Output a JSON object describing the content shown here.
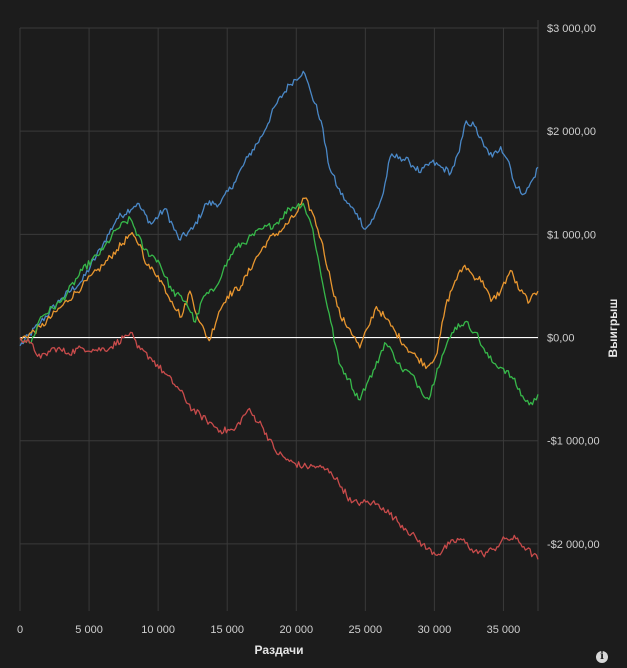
{
  "chart_data": {
    "type": "line",
    "xlabel": "Раздачи",
    "ylabel": "Выигрыш",
    "xlim": [
      0,
      37500
    ],
    "ylim": [
      -2650,
      3000
    ],
    "x_ticks": [
      0,
      5000,
      10000,
      15000,
      20000,
      25000,
      30000,
      35000
    ],
    "x_tick_labels": [
      "0",
      "5 000",
      "10 000",
      "15 000",
      "20 000",
      "25 000",
      "30 000",
      "35 000"
    ],
    "y_ticks": [
      3000,
      2000,
      1000,
      0,
      -1000,
      -2000
    ],
    "y_tick_labels": [
      "$3 000,00",
      "$2 000,00",
      "$1 000,00",
      "$0,00",
      "-$1 000,00",
      "-$2 000,00"
    ],
    "grid": true,
    "series": [
      {
        "color": "#4a88c7",
        "points": [
          [
            0,
            -80
          ],
          [
            1500,
            150
          ],
          [
            3000,
            380
          ],
          [
            4500,
            550
          ],
          [
            6000,
            900
          ],
          [
            7000,
            1150
          ],
          [
            8500,
            1300
          ],
          [
            9500,
            1100
          ],
          [
            10500,
            1250
          ],
          [
            11500,
            950
          ],
          [
            12500,
            1050
          ],
          [
            13500,
            1300
          ],
          [
            14500,
            1300
          ],
          [
            15500,
            1500
          ],
          [
            16500,
            1750
          ],
          [
            17500,
            1950
          ],
          [
            18500,
            2250
          ],
          [
            19500,
            2450
          ],
          [
            20500,
            2580
          ],
          [
            21000,
            2400
          ],
          [
            21800,
            2100
          ],
          [
            22300,
            1700
          ],
          [
            23000,
            1450
          ],
          [
            23700,
            1300
          ],
          [
            24400,
            1200
          ],
          [
            25000,
            1050
          ],
          [
            25600,
            1150
          ],
          [
            26300,
            1400
          ],
          [
            26800,
            1750
          ],
          [
            27500,
            1750
          ],
          [
            28200,
            1700
          ],
          [
            29000,
            1600
          ],
          [
            29800,
            1700
          ],
          [
            30500,
            1650
          ],
          [
            31200,
            1600
          ],
          [
            31800,
            1800
          ],
          [
            32300,
            2100
          ],
          [
            32900,
            2050
          ],
          [
            33600,
            1850
          ],
          [
            34200,
            1750
          ],
          [
            34800,
            1850
          ],
          [
            35400,
            1700
          ],
          [
            35900,
            1450
          ],
          [
            36600,
            1400
          ],
          [
            37200,
            1550
          ],
          [
            37500,
            1650
          ]
        ]
      },
      {
        "color": "#e8962f",
        "points": [
          [
            0,
            -20
          ],
          [
            1500,
            100
          ],
          [
            3000,
            300
          ],
          [
            4500,
            500
          ],
          [
            6000,
            700
          ],
          [
            7000,
            850
          ],
          [
            8000,
            1000
          ],
          [
            8700,
            900
          ],
          [
            9200,
            700
          ],
          [
            10000,
            600
          ],
          [
            11000,
            350
          ],
          [
            11700,
            200
          ],
          [
            12300,
            450
          ],
          [
            13000,
            150
          ],
          [
            13700,
            -30
          ],
          [
            14400,
            250
          ],
          [
            15000,
            400
          ],
          [
            16000,
            500
          ],
          [
            17000,
            750
          ],
          [
            18000,
            950
          ],
          [
            19000,
            1050
          ],
          [
            20000,
            1200
          ],
          [
            20600,
            1350
          ],
          [
            21200,
            1200
          ],
          [
            21800,
            950
          ],
          [
            22500,
            550
          ],
          [
            23200,
            200
          ],
          [
            23900,
            80
          ],
          [
            24600,
            -100
          ],
          [
            25200,
            100
          ],
          [
            25800,
            300
          ],
          [
            26500,
            180
          ],
          [
            27200,
            50
          ],
          [
            28000,
            -100
          ],
          [
            28800,
            -200
          ],
          [
            29500,
            -280
          ],
          [
            30200,
            -150
          ],
          [
            30800,
            300
          ],
          [
            31500,
            550
          ],
          [
            32200,
            700
          ],
          [
            32800,
            600
          ],
          [
            33500,
            550
          ],
          [
            34100,
            350
          ],
          [
            34800,
            450
          ],
          [
            35500,
            650
          ],
          [
            36200,
            450
          ],
          [
            36900,
            350
          ],
          [
            37500,
            450
          ]
        ]
      },
      {
        "color": "#37b84a",
        "points": [
          [
            0,
            0
          ],
          [
            800,
            -50
          ],
          [
            1500,
            200
          ],
          [
            3000,
            350
          ],
          [
            4500,
            650
          ],
          [
            6000,
            850
          ],
          [
            7000,
            1050
          ],
          [
            8000,
            1150
          ],
          [
            9000,
            850
          ],
          [
            10000,
            750
          ],
          [
            11000,
            450
          ],
          [
            12000,
            350
          ],
          [
            12700,
            150
          ],
          [
            13300,
            400
          ],
          [
            14000,
            450
          ],
          [
            14700,
            650
          ],
          [
            15500,
            850
          ],
          [
            16500,
            950
          ],
          [
            17500,
            1050
          ],
          [
            18500,
            1100
          ],
          [
            19500,
            1250
          ],
          [
            20500,
            1300
          ],
          [
            21200,
            1050
          ],
          [
            21800,
            600
          ],
          [
            22500,
            150
          ],
          [
            23100,
            -250
          ],
          [
            23800,
            -400
          ],
          [
            24500,
            -600
          ],
          [
            25100,
            -450
          ],
          [
            25700,
            -300
          ],
          [
            26400,
            -50
          ],
          [
            27000,
            -150
          ],
          [
            27600,
            -300
          ],
          [
            28300,
            -350
          ],
          [
            29000,
            -500
          ],
          [
            29600,
            -600
          ],
          [
            30200,
            -300
          ],
          [
            30800,
            -100
          ],
          [
            31500,
            100
          ],
          [
            32200,
            150
          ],
          [
            33000,
            50
          ],
          [
            33700,
            -150
          ],
          [
            34300,
            -250
          ],
          [
            35000,
            -300
          ],
          [
            35700,
            -400
          ],
          [
            36500,
            -600
          ],
          [
            37100,
            -650
          ],
          [
            37500,
            -550
          ]
        ]
      },
      {
        "color": "#c84b4b",
        "points": [
          [
            0,
            0
          ],
          [
            700,
            -50
          ],
          [
            1500,
            -200
          ],
          [
            2500,
            -100
          ],
          [
            3500,
            -150
          ],
          [
            4500,
            -100
          ],
          [
            5500,
            -120
          ],
          [
            6500,
            -100
          ],
          [
            7500,
            0
          ],
          [
            8000,
            50
          ],
          [
            8500,
            -100
          ],
          [
            9500,
            -200
          ],
          [
            10500,
            -350
          ],
          [
            11500,
            -500
          ],
          [
            12500,
            -700
          ],
          [
            13500,
            -800
          ],
          [
            14500,
            -900
          ],
          [
            15500,
            -900
          ],
          [
            16500,
            -700
          ],
          [
            17500,
            -850
          ],
          [
            18500,
            -1100
          ],
          [
            19500,
            -1200
          ],
          [
            20500,
            -1250
          ],
          [
            21500,
            -1250
          ],
          [
            22500,
            -1300
          ],
          [
            23300,
            -1450
          ],
          [
            24000,
            -1600
          ],
          [
            24800,
            -1600
          ],
          [
            25500,
            -1600
          ],
          [
            26300,
            -1650
          ],
          [
            27100,
            -1750
          ],
          [
            27900,
            -1850
          ],
          [
            28700,
            -1950
          ],
          [
            29500,
            -2050
          ],
          [
            30300,
            -2100
          ],
          [
            31100,
            -2000
          ],
          [
            31900,
            -1950
          ],
          [
            32700,
            -2050
          ],
          [
            33500,
            -2100
          ],
          [
            34300,
            -2050
          ],
          [
            35100,
            -1950
          ],
          [
            35900,
            -1950
          ],
          [
            36700,
            -2050
          ],
          [
            37500,
            -2150
          ]
        ]
      }
    ],
    "zero_line_color": "#ffffff"
  },
  "colors": {
    "background": "#1c1c1c",
    "grid": "#3a3a3a",
    "text": "#cfcfcf"
  },
  "icons": {
    "info": "info-icon"
  },
  "info_glyph": "i"
}
